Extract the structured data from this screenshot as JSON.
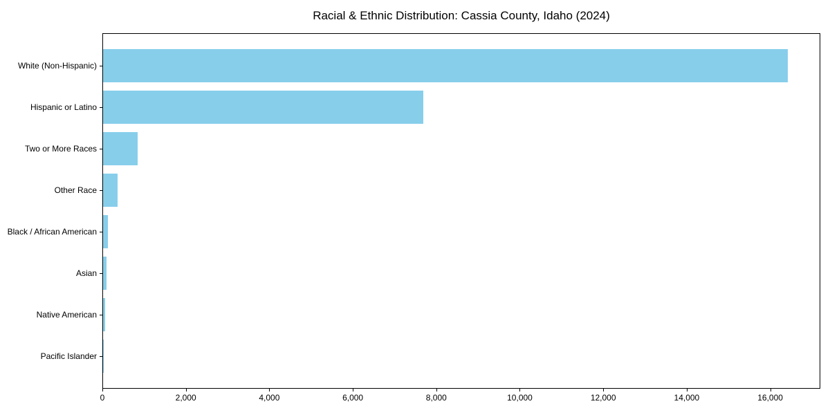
{
  "chart_data": {
    "type": "bar",
    "orientation": "horizontal",
    "title": "Racial & Ethnic Distribution: Cassia County, Idaho (2024)",
    "categories": [
      "White (Non-Hispanic)",
      "Hispanic or Latino",
      "Two or More Races",
      "Other Race",
      "Black / African American",
      "Asian",
      "Native American",
      "Pacific Islander"
    ],
    "values": [
      16400,
      7670,
      830,
      340,
      120,
      90,
      45,
      10
    ],
    "xlabel": "",
    "ylabel": "",
    "xlim": [
      0,
      17200
    ],
    "xticks": [
      0,
      2000,
      4000,
      6000,
      8000,
      10000,
      12000,
      14000,
      16000
    ],
    "xtick_labels": [
      "0",
      "2,000",
      "4,000",
      "6,000",
      "8,000",
      "10,000",
      "12,000",
      "14,000",
      "16,000"
    ],
    "grid": false,
    "legend": false,
    "bar_color": "#87CEEB",
    "spine_color": "#000000",
    "text_color": "#000000"
  }
}
